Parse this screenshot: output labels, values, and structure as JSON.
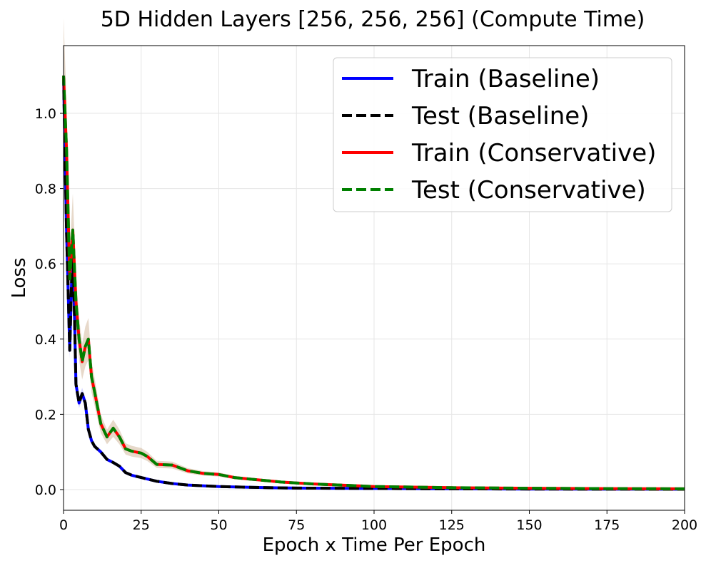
{
  "chart_data": {
    "type": "line",
    "title": "5D Hidden Layers [256, 256, 256] (Compute Time)",
    "xlabel": "Epoch x Time Per Epoch",
    "ylabel": "Loss",
    "xlim": [
      0,
      200
    ],
    "ylim": [
      -0.055,
      1.18
    ],
    "xticks": [
      0,
      25,
      50,
      75,
      100,
      125,
      150,
      175,
      200
    ],
    "yticks": [
      0.0,
      0.2,
      0.4,
      0.6,
      0.8,
      1.0
    ],
    "grid": true,
    "legend_position": "top-right",
    "series": [
      {
        "name": "Train (Baseline)",
        "color": "#0000ff",
        "style": "solid",
        "band": true,
        "x": [
          0,
          1,
          2,
          3,
          4,
          5,
          6,
          7,
          8,
          9,
          10,
          12,
          14,
          16,
          18,
          20,
          22,
          25,
          30,
          35,
          40,
          50,
          60,
          75,
          100,
          125,
          150,
          175,
          200
        ],
        "y": [
          1.1,
          0.68,
          0.37,
          0.67,
          0.28,
          0.23,
          0.255,
          0.23,
          0.16,
          0.13,
          0.115,
          0.1,
          0.08,
          0.072,
          0.062,
          0.045,
          0.038,
          0.032,
          0.022,
          0.016,
          0.012,
          0.008,
          0.006,
          0.004,
          0.003,
          0.002,
          0.0015,
          0.001,
          0.0008
        ]
      },
      {
        "name": "Test (Baseline)",
        "color": "#000000",
        "style": "dashed",
        "band": false,
        "x": [
          0,
          1,
          2,
          3,
          4,
          5,
          6,
          7,
          8,
          9,
          10,
          12,
          14,
          16,
          18,
          20,
          22,
          25,
          30,
          35,
          40,
          50,
          60,
          75,
          100,
          125,
          150,
          175,
          200
        ],
        "y": [
          1.1,
          0.68,
          0.37,
          0.67,
          0.28,
          0.23,
          0.255,
          0.23,
          0.16,
          0.13,
          0.115,
          0.1,
          0.08,
          0.072,
          0.062,
          0.045,
          0.038,
          0.032,
          0.022,
          0.016,
          0.012,
          0.008,
          0.006,
          0.004,
          0.003,
          0.002,
          0.0015,
          0.001,
          0.0008
        ]
      },
      {
        "name": "Train (Conservative)",
        "color": "#ff0000",
        "style": "solid",
        "band": true,
        "x": [
          0,
          1,
          2,
          3,
          4,
          5,
          6,
          7,
          8,
          9,
          10,
          12,
          14,
          16,
          18,
          20,
          22,
          25,
          27,
          30,
          35,
          40,
          45,
          50,
          55,
          60,
          70,
          80,
          100,
          125,
          150,
          175,
          200
        ],
        "y": [
          1.1,
          0.9,
          0.56,
          0.69,
          0.5,
          0.4,
          0.34,
          0.38,
          0.4,
          0.3,
          0.26,
          0.175,
          0.14,
          0.163,
          0.14,
          0.108,
          0.102,
          0.097,
          0.088,
          0.067,
          0.065,
          0.05,
          0.043,
          0.04,
          0.032,
          0.028,
          0.02,
          0.015,
          0.008,
          0.005,
          0.0035,
          0.0025,
          0.002
        ]
      },
      {
        "name": "Test (Conservative)",
        "color": "#008000",
        "style": "dashed",
        "band": false,
        "x": [
          0,
          1,
          2,
          3,
          4,
          5,
          6,
          7,
          8,
          9,
          10,
          12,
          14,
          16,
          18,
          20,
          22,
          25,
          27,
          30,
          35,
          40,
          45,
          50,
          55,
          60,
          70,
          80,
          100,
          125,
          150,
          175,
          200
        ],
        "y": [
          1.1,
          0.9,
          0.56,
          0.69,
          0.5,
          0.4,
          0.34,
          0.38,
          0.4,
          0.3,
          0.26,
          0.175,
          0.14,
          0.163,
          0.14,
          0.108,
          0.102,
          0.097,
          0.088,
          0.067,
          0.065,
          0.05,
          0.043,
          0.04,
          0.032,
          0.028,
          0.02,
          0.015,
          0.008,
          0.005,
          0.0035,
          0.0025,
          0.002
        ]
      }
    ]
  }
}
